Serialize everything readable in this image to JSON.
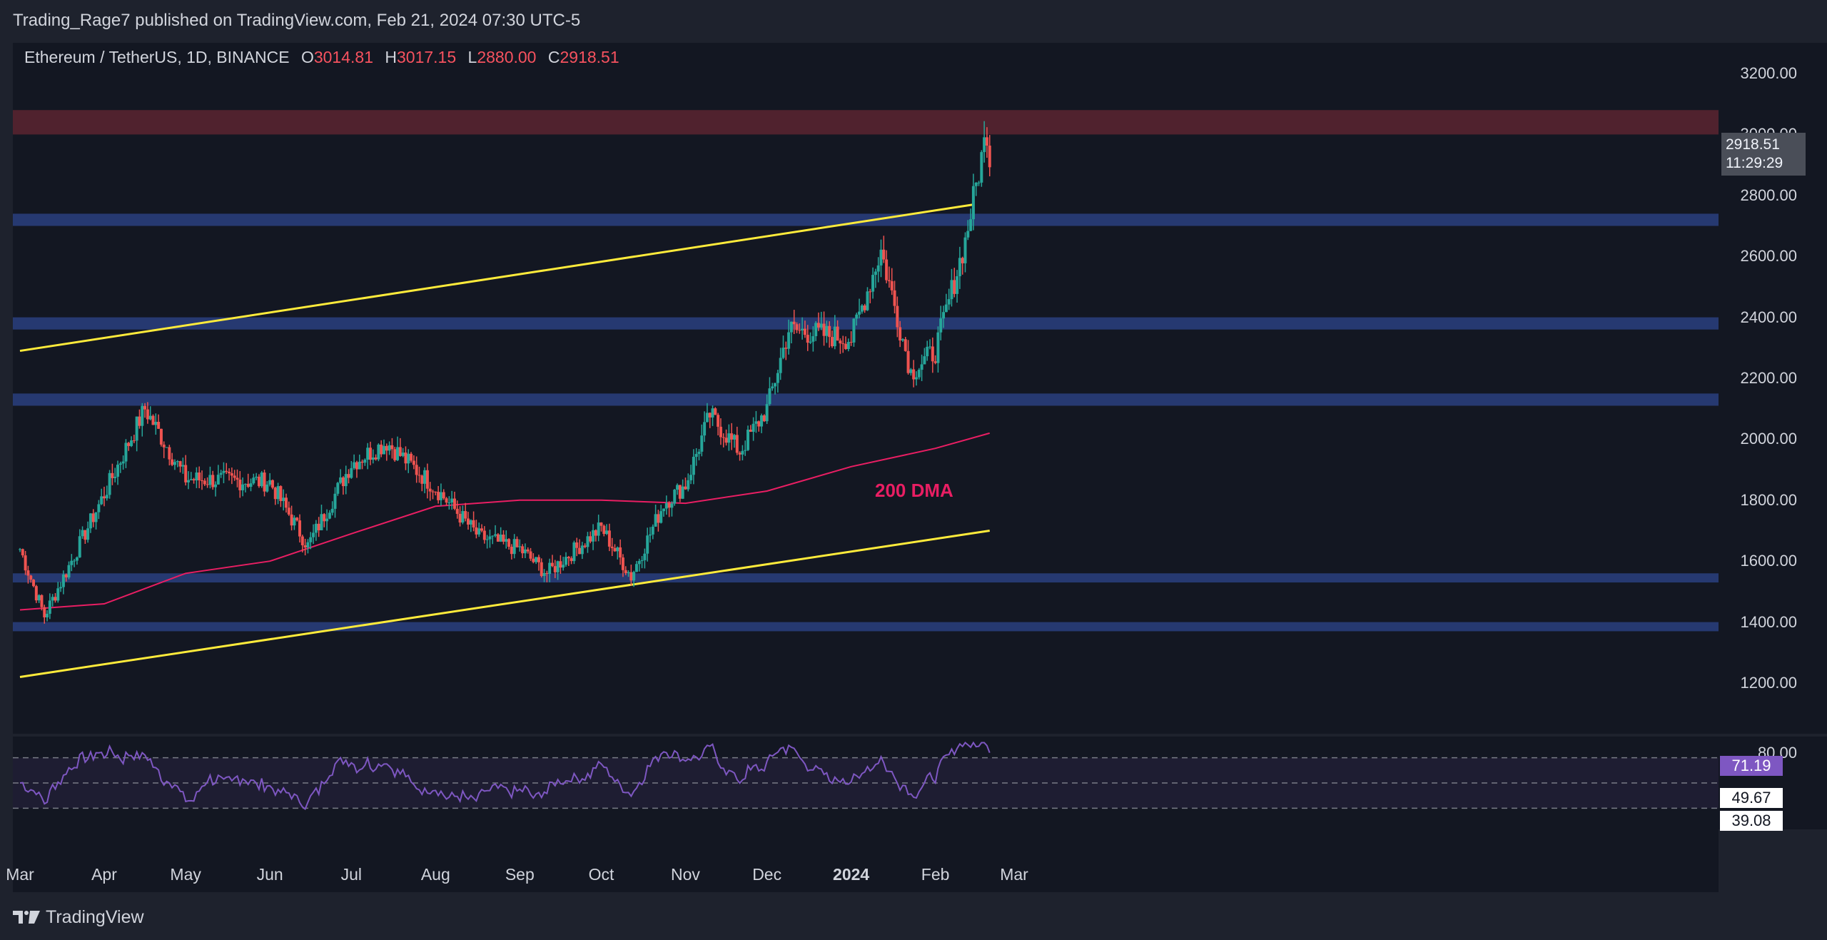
{
  "header": {
    "published": "Trading_Rage7 published on TradingView.com, Feb 21, 2024 07:30 UTC-5"
  },
  "legend": {
    "symbol": "Ethereum / TetherUS, 1D, BINANCE",
    "o_key": "O",
    "o_val": "3014.81",
    "h_key": "H",
    "h_val": "3017.15",
    "l_key": "L",
    "l_val": "2880.00",
    "c_key": "C",
    "c_val": "2918.51"
  },
  "price_axis": {
    "labels": [
      "3200.00",
      "3000.00",
      "2800.00",
      "2600.00",
      "2400.00",
      "2200.00",
      "2000.00",
      "1800.00",
      "1600.00",
      "1400.00",
      "1200.00"
    ]
  },
  "price_tag": {
    "price": "2918.51",
    "countdown": "11:29:29"
  },
  "rsi": {
    "axis_top_label": "80.00",
    "value": "71.19",
    "ma_value": "49.67",
    "third_value": "39.08"
  },
  "time_axis": {
    "labels": [
      "Mar",
      "Apr",
      "May",
      "Jun",
      "Jul",
      "Aug",
      "Sep",
      "Oct",
      "Nov",
      "Dec",
      "2024",
      "Feb",
      "Mar"
    ]
  },
  "annotations": {
    "dma_label": "200 DMA"
  },
  "brand": {
    "name": "TradingView"
  },
  "colors": {
    "up": "#26a69a",
    "down": "#ef5350",
    "channel": "#ffeb3b",
    "dma": "#e91e63",
    "zone": "#2a3f7f",
    "resistance_zone": "#5c2430",
    "rsi_line": "#7e57c2"
  },
  "chart_data": {
    "type": "candlestick",
    "symbol": "Ethereum / TetherUS",
    "interval": "1D",
    "ylim": [
      1150,
      3250
    ],
    "y_ticks": [
      1200,
      1400,
      1600,
      1800,
      2000,
      2200,
      2400,
      2600,
      2800,
      3000,
      3200
    ],
    "x_range": [
      "2023-03-01",
      "2024-03-12"
    ],
    "monthly_closes_approx": [
      {
        "date": "2023-03-01",
        "close": 1640
      },
      {
        "date": "2023-03-10",
        "close": 1420
      },
      {
        "date": "2023-04-01",
        "close": 1820
      },
      {
        "date": "2023-04-16",
        "close": 2100
      },
      {
        "date": "2023-05-01",
        "close": 1870
      },
      {
        "date": "2023-06-01",
        "close": 1860
      },
      {
        "date": "2023-06-15",
        "close": 1650
      },
      {
        "date": "2023-07-01",
        "close": 1920
      },
      {
        "date": "2023-07-14",
        "close": 1990
      },
      {
        "date": "2023-08-01",
        "close": 1840
      },
      {
        "date": "2023-08-17",
        "close": 1680
      },
      {
        "date": "2023-09-01",
        "close": 1640
      },
      {
        "date": "2023-09-11",
        "close": 1560
      },
      {
        "date": "2023-10-01",
        "close": 1710
      },
      {
        "date": "2023-10-12",
        "close": 1550
      },
      {
        "date": "2023-10-24",
        "close": 1790
      },
      {
        "date": "2023-11-01",
        "close": 1850
      },
      {
        "date": "2023-11-10",
        "close": 2080
      },
      {
        "date": "2023-11-21",
        "close": 1960
      },
      {
        "date": "2023-12-01",
        "close": 2100
      },
      {
        "date": "2023-12-09",
        "close": 2360
      },
      {
        "date": "2024-01-01",
        "close": 2330
      },
      {
        "date": "2024-01-12",
        "close": 2620
      },
      {
        "date": "2024-01-23",
        "close": 2220
      },
      {
        "date": "2024-02-01",
        "close": 2290
      },
      {
        "date": "2024-02-12",
        "close": 2650
      },
      {
        "date": "2024-02-20",
        "close": 3014.81
      },
      {
        "date": "2024-02-21",
        "close": 2918.51
      }
    ],
    "support_resistance_zones": [
      {
        "low": 3000,
        "high": 3080,
        "kind": "resistance"
      },
      {
        "low": 2700,
        "high": 2740
      },
      {
        "low": 2360,
        "high": 2400
      },
      {
        "low": 2110,
        "high": 2150
      },
      {
        "low": 1530,
        "high": 1560
      },
      {
        "low": 1370,
        "high": 1400
      }
    ],
    "channel_lines": [
      {
        "from": {
          "date": "2023-03-01",
          "price": 2290
        },
        "to": {
          "date": "2024-02-15",
          "price": 2770
        }
      },
      {
        "from": {
          "date": "2023-03-01",
          "price": 1220
        },
        "to": {
          "date": "2024-02-21",
          "price": 1700
        }
      }
    ],
    "ma200": [
      {
        "date": "2023-03-01",
        "value": 1440
      },
      {
        "date": "2023-04-01",
        "value": 1460
      },
      {
        "date": "2023-05-01",
        "value": 1560
      },
      {
        "date": "2023-06-01",
        "value": 1600
      },
      {
        "date": "2023-07-01",
        "value": 1690
      },
      {
        "date": "2023-08-01",
        "value": 1780
      },
      {
        "date": "2023-09-01",
        "value": 1800
      },
      {
        "date": "2023-10-01",
        "value": 1800
      },
      {
        "date": "2023-11-01",
        "value": 1790
      },
      {
        "date": "2023-12-01",
        "value": 1830
      },
      {
        "date": "2024-01-01",
        "value": 1910
      },
      {
        "date": "2024-02-01",
        "value": 1970
      },
      {
        "date": "2024-02-21",
        "value": 2020
      }
    ],
    "rsi": {
      "value": 71.19,
      "ma": 49.67,
      "third": 39.08,
      "upper_band": 70,
      "mid_band": 50,
      "lower_band": 30
    }
  }
}
